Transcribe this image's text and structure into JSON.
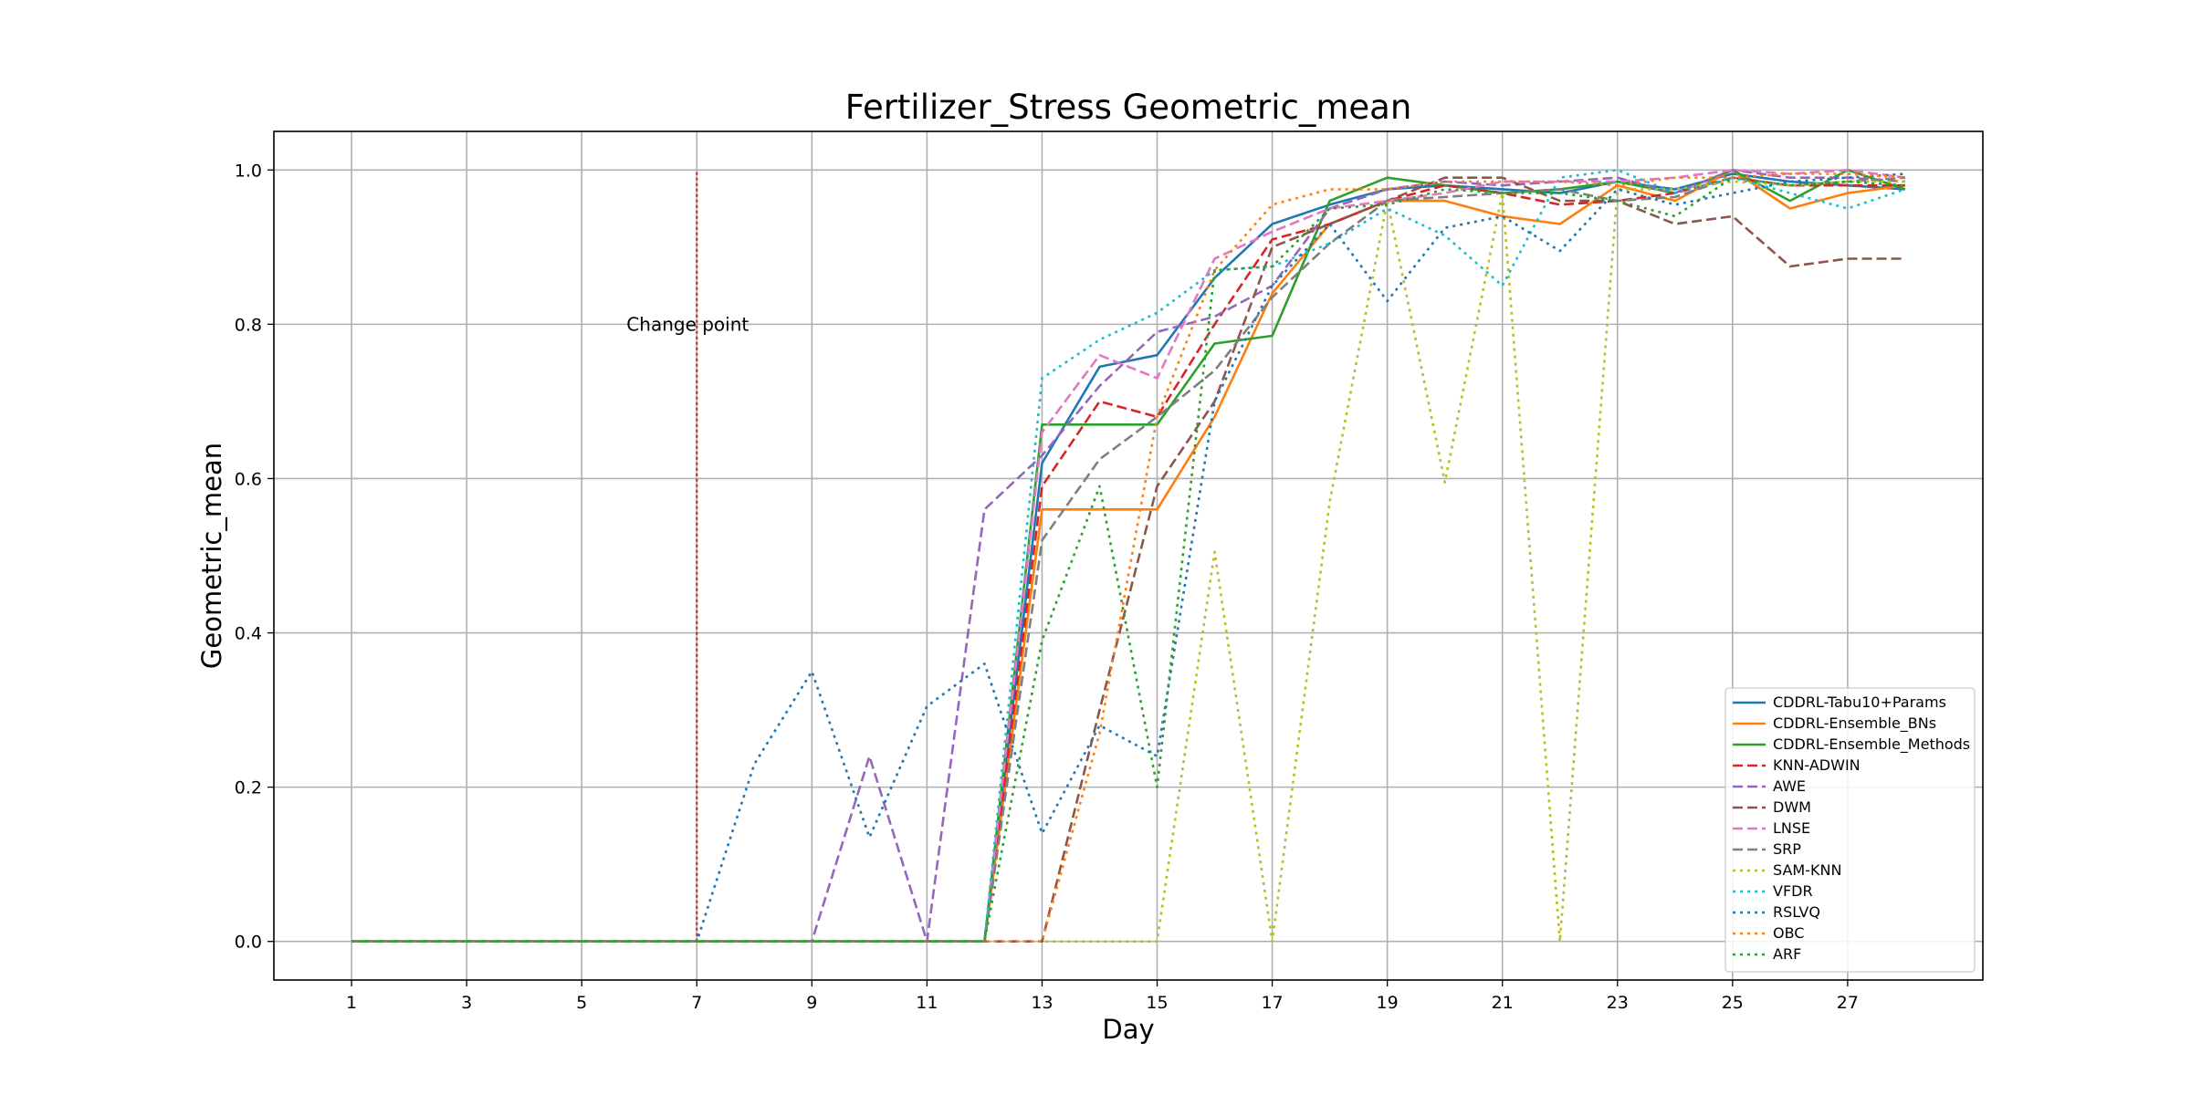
{
  "chart_data": {
    "type": "line",
    "title": "Fertilizer_Stress Geometric_mean",
    "xlabel": "Day",
    "ylabel": "Geometric_mean",
    "xlim": [
      -0.35,
      29.35
    ],
    "ylim": [
      -0.05,
      1.05
    ],
    "x_ticks": [
      "1",
      "3",
      "5",
      "7",
      "9",
      "11",
      "13",
      "15",
      "17",
      "19",
      "21",
      "23",
      "25",
      "27"
    ],
    "y_ticks": [
      "0.0",
      "0.2",
      "0.4",
      "0.6",
      "0.8",
      "1.0"
    ],
    "grid": true,
    "legend_position": "lower-right",
    "x": [
      1,
      2,
      3,
      4,
      5,
      6,
      7,
      8,
      9,
      10,
      11,
      12,
      13,
      14,
      15,
      16,
      17,
      18,
      19,
      20,
      21,
      22,
      23,
      24,
      25,
      26,
      27,
      28
    ],
    "change_point": {
      "x": 7,
      "y_top": 1.0,
      "label": "Change point",
      "color": "#d62728"
    },
    "series": [
      {
        "name": "CDDRL-Tabu10+Params",
        "color": "#1f77b4",
        "dash": "solid",
        "values": [
          0,
          0,
          0,
          0,
          0,
          0,
          0,
          0,
          0,
          0,
          0,
          0,
          0.62,
          0.745,
          0.76,
          0.86,
          0.93,
          0.955,
          0.975,
          0.98,
          0.975,
          0.97,
          0.985,
          0.975,
          0.995,
          0.985,
          0.98,
          0.975
        ]
      },
      {
        "name": "CDDRL-Ensemble_BNs",
        "color": "#ff7f0e",
        "dash": "solid",
        "values": [
          0,
          0,
          0,
          0,
          0,
          0,
          0,
          0,
          0,
          0,
          0,
          0,
          0.56,
          0.56,
          0.56,
          0.68,
          0.84,
          0.93,
          0.96,
          0.96,
          0.94,
          0.93,
          0.98,
          0.96,
          1.0,
          0.95,
          0.97,
          0.98
        ]
      },
      {
        "name": "CDDRL-Ensemble_Methods",
        "color": "#2ca02c",
        "dash": "solid",
        "values": [
          0,
          0,
          0,
          0,
          0,
          0,
          0,
          0,
          0,
          0,
          0,
          0,
          0.67,
          0.67,
          0.67,
          0.775,
          0.785,
          0.96,
          0.99,
          0.98,
          0.97,
          0.975,
          0.985,
          0.97,
          1.0,
          0.96,
          1.0,
          0.975
        ]
      },
      {
        "name": "KNN-ADWIN",
        "color": "#d62728",
        "dash": "dashed",
        "values": [
          0,
          0,
          0,
          0,
          0,
          0,
          0,
          0,
          0,
          0,
          0,
          0,
          0.59,
          0.7,
          0.68,
          0.8,
          0.91,
          0.93,
          0.96,
          0.98,
          0.97,
          0.955,
          0.96,
          0.97,
          0.99,
          0.98,
          0.98,
          0.98
        ]
      },
      {
        "name": "AWE",
        "color": "#9467bd",
        "dash": "dashed",
        "values": [
          0,
          0,
          0,
          0,
          0,
          0,
          0,
          0,
          0,
          0.24,
          0,
          0.56,
          0.63,
          0.72,
          0.79,
          0.81,
          0.85,
          0.95,
          0.975,
          0.985,
          0.98,
          0.985,
          0.99,
          0.97,
          1.0,
          0.99,
          0.99,
          0.985
        ]
      },
      {
        "name": "DWM",
        "color": "#8c564b",
        "dash": "dashed",
        "values": [
          0,
          0,
          0,
          0,
          0,
          0,
          0,
          0,
          0,
          0,
          0,
          0,
          0,
          0.3,
          0.59,
          0.7,
          0.9,
          0.93,
          0.96,
          0.99,
          0.99,
          0.96,
          0.96,
          0.93,
          0.94,
          0.875,
          0.885,
          0.885
        ]
      },
      {
        "name": "LNSE",
        "color": "#e377c2",
        "dash": "dashed",
        "values": [
          0,
          0,
          0,
          0,
          0,
          0,
          0,
          0,
          0,
          0,
          0,
          0,
          0.66,
          0.76,
          0.73,
          0.885,
          0.92,
          0.95,
          0.96,
          0.97,
          0.985,
          0.985,
          0.985,
          0.99,
          1.0,
          0.995,
          1.0,
          0.99
        ]
      },
      {
        "name": "SRP",
        "color": "#7f7f7f",
        "dash": "dashed",
        "values": [
          0,
          0,
          0,
          0,
          0,
          0,
          0,
          0,
          0,
          0,
          0,
          0,
          0.52,
          0.625,
          0.68,
          0.74,
          0.835,
          0.905,
          0.96,
          0.965,
          0.97,
          0.975,
          0.96,
          0.965,
          0.99,
          0.98,
          0.985,
          0.99
        ]
      },
      {
        "name": "SAM-KNN",
        "color": "#bcbd22",
        "dash": "dotted",
        "values": [
          0,
          0,
          0,
          0,
          0,
          0,
          0,
          0,
          0,
          0,
          0,
          0,
          0,
          0,
          0,
          0.505,
          0,
          0.57,
          0.96,
          0.595,
          0.97,
          0,
          0.975,
          0.975,
          0.985,
          0.98,
          0.985,
          0.985
        ]
      },
      {
        "name": "VFDR",
        "color": "#17becf",
        "dash": "dotted",
        "values": [
          0,
          0,
          0,
          0,
          0,
          0,
          0,
          0,
          0,
          0,
          0,
          0,
          0.73,
          0.78,
          0.815,
          0.87,
          0.875,
          0.905,
          0.95,
          0.915,
          0.85,
          0.99,
          1.0,
          0.97,
          0.99,
          0.97,
          0.95,
          0.975
        ]
      },
      {
        "name": "RSLVQ",
        "color": "#1f77b4",
        "dash": "dotted",
        "values": [
          0,
          0,
          0,
          0,
          0,
          0,
          0,
          0.23,
          0.35,
          0.135,
          0.305,
          0.36,
          0.14,
          0.28,
          0.24,
          0.7,
          0.85,
          0.93,
          0.83,
          0.925,
          0.94,
          0.895,
          0.975,
          0.955,
          0.97,
          0.985,
          0.99,
          0.995
        ]
      },
      {
        "name": "OBC",
        "color": "#ff7f0e",
        "dash": "dotted",
        "values": [
          0,
          0,
          0,
          0,
          0,
          0,
          0,
          0,
          0,
          0,
          0,
          0,
          0,
          0.27,
          0.68,
          0.87,
          0.955,
          0.975,
          0.975,
          0.985,
          0.985,
          0.985,
          0.98,
          0.99,
          0.99,
          0.995,
          0.995,
          0.99
        ]
      },
      {
        "name": "ARF",
        "color": "#2ca02c",
        "dash": "dotted",
        "values": [
          0,
          0,
          0,
          0,
          0,
          0,
          0,
          0,
          0,
          0,
          0,
          0,
          0.39,
          0.59,
          0.2,
          0.87,
          0.875,
          0.95,
          0.955,
          0.975,
          0.97,
          0.97,
          0.96,
          0.94,
          0.99,
          0.98,
          0.985,
          0.98
        ]
      }
    ]
  }
}
